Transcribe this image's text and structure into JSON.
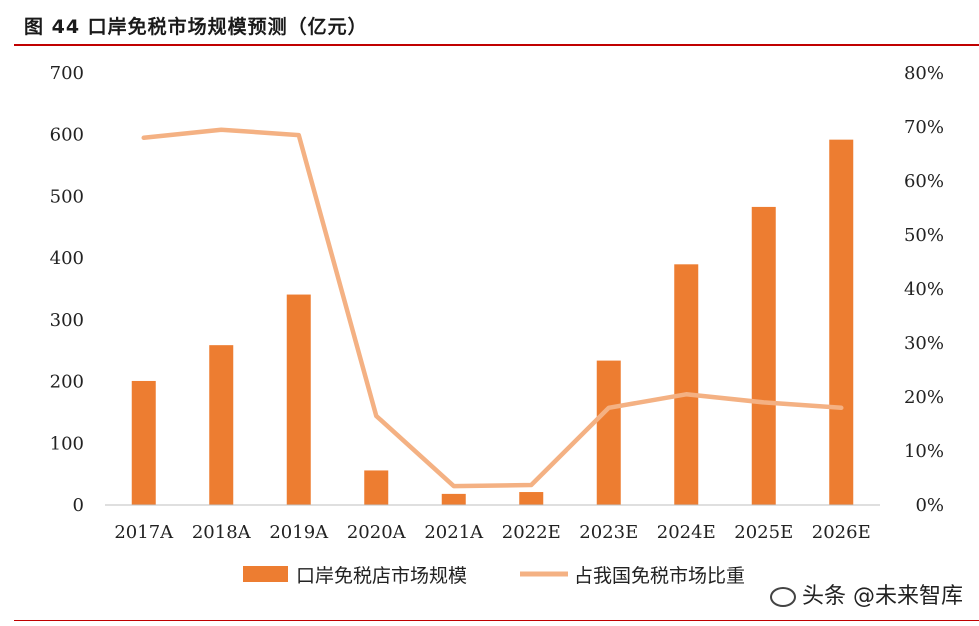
{
  "header": {
    "title": "图 44 口岸免税市场规模预测（亿元）"
  },
  "watermark": {
    "text": "头条 @未来智库"
  },
  "colors": {
    "bar": "#ed7d31",
    "line": "#f4b183",
    "rule": "#c00000"
  },
  "chart_data": {
    "type": "bar",
    "title": "图 44 口岸免税市场规模预测（亿元）",
    "categories": [
      "2017A",
      "2018A",
      "2019A",
      "2020A",
      "2021A",
      "2022E",
      "2023E",
      "2024E",
      "2025E",
      "2026E"
    ],
    "series": [
      {
        "name": "口岸免税店市场规模",
        "type": "bar",
        "axis": "left",
        "values": [
          201,
          259,
          341,
          56,
          18,
          21,
          234,
          390,
          483,
          592
        ]
      },
      {
        "name": "占我国免税市场比重",
        "type": "line",
        "axis": "right",
        "values": [
          0.68,
          0.695,
          0.685,
          0.165,
          0.035,
          0.037,
          0.18,
          0.205,
          0.19,
          0.18
        ]
      }
    ],
    "y_left": {
      "min": 0,
      "max": 700,
      "ticks": [
        "0",
        "100",
        "200",
        "300",
        "400",
        "500",
        "600",
        "700"
      ]
    },
    "y_right": {
      "min": 0,
      "max": 0.8,
      "ticks": [
        "0%",
        "10%",
        "20%",
        "30%",
        "40%",
        "50%",
        "60%",
        "70%",
        "80%"
      ]
    },
    "legend": {
      "position": "bottom",
      "labels": [
        "口岸免税店市场规模",
        "占我国免税市场比重"
      ]
    },
    "grid": false
  }
}
